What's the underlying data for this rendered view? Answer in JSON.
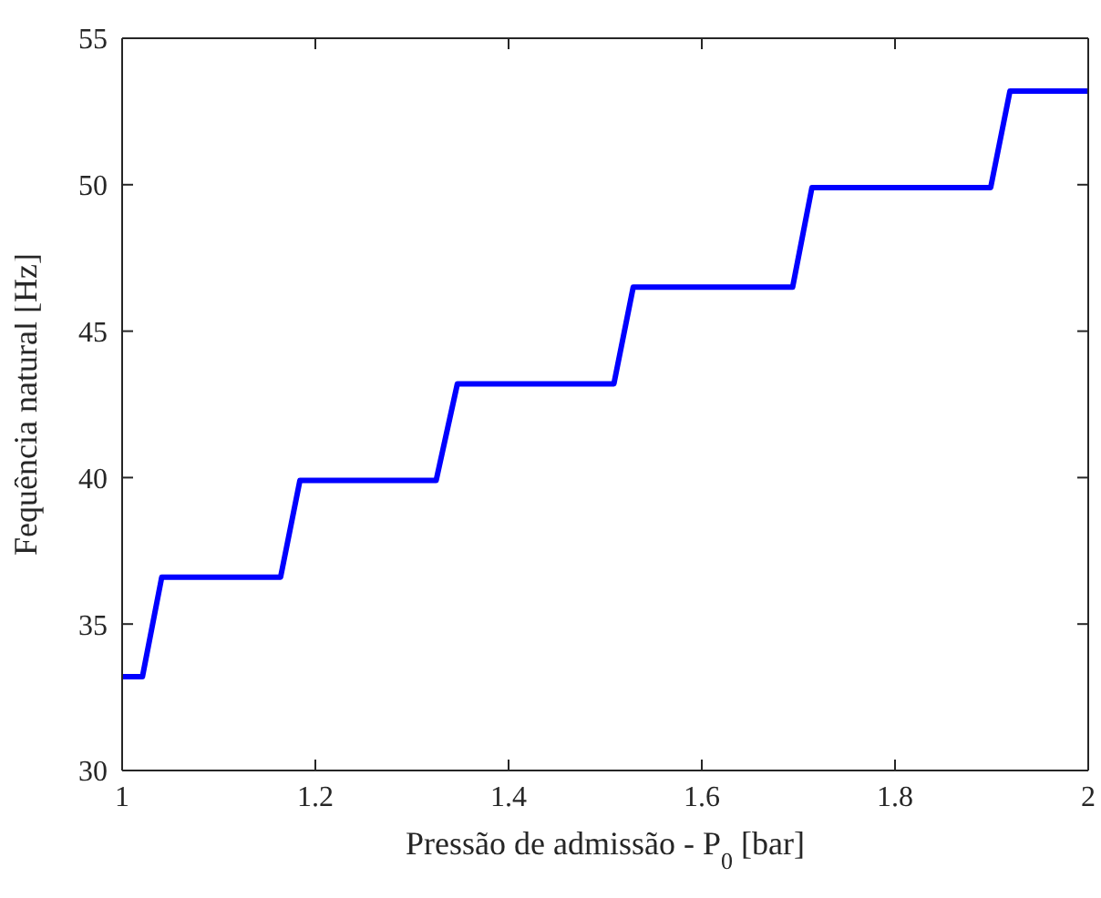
{
  "chart_data": {
    "type": "line",
    "xlabel": "Pressão de admissão - P$_{0}$ [bar]",
    "ylabel": "Fequência natural [Hz]",
    "x": [
      1,
      1.021,
      1.041,
      1.164,
      1.184,
      1.325,
      1.347,
      1.509,
      1.529,
      1.694,
      1.714,
      1.899,
      1.919,
      2
    ],
    "series": [
      {
        "color": "#0000ff",
        "values": [
          33.2,
          33.2,
          36.6,
          36.6,
          39.9,
          39.9,
          43.2,
          43.2,
          46.5,
          46.5,
          49.9,
          49.9,
          53.2,
          53.2
        ]
      }
    ],
    "xlim": [
      1,
      2
    ],
    "xticks": [
      1,
      1.2,
      1.4,
      1.6,
      1.8,
      2
    ],
    "ylim": [
      30,
      55
    ],
    "yticks": [
      30,
      35,
      40,
      45,
      50,
      55
    ],
    "marker": "none",
    "line_style": "solid"
  }
}
